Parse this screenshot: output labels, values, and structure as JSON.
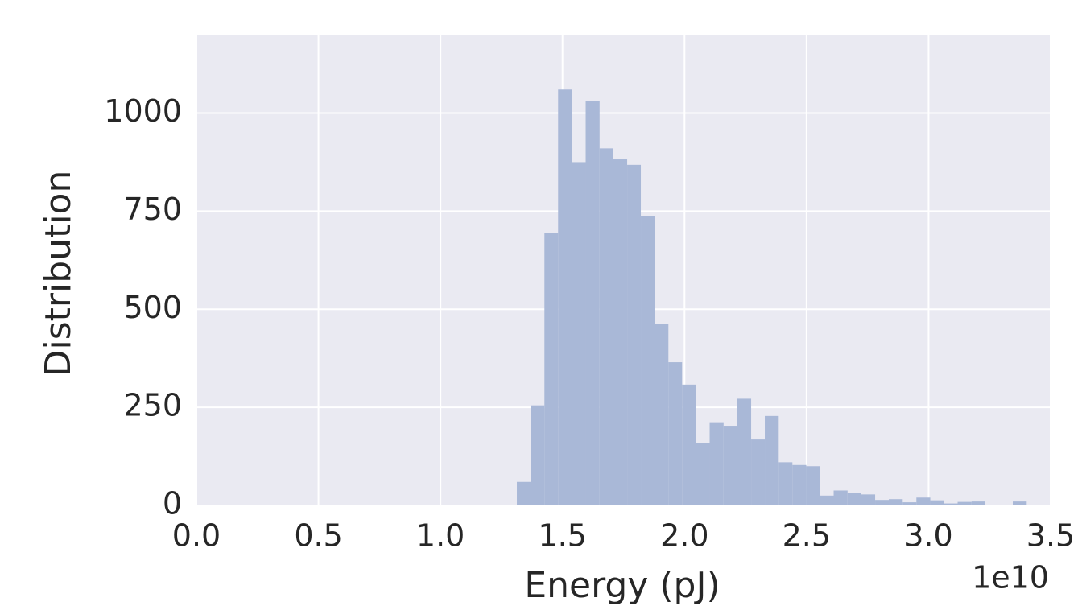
{
  "chart_data": {
    "type": "histogram",
    "xlabel": "Energy (pJ)",
    "ylabel": "Distribution",
    "x_offset_label": "1e10",
    "bins": [
      1.313,
      1.369,
      1.426,
      1.482,
      1.539,
      1.595,
      1.652,
      1.708,
      1.765,
      1.821,
      1.878,
      1.934,
      1.99,
      2.047,
      2.103,
      2.16,
      2.216,
      2.273,
      2.329,
      2.386,
      2.442,
      2.499,
      2.555,
      2.611,
      2.668,
      2.724,
      2.781,
      2.837,
      2.894,
      2.95,
      3.007,
      3.063,
      3.119,
      3.176,
      3.232,
      3.289,
      3.345,
      3.402
    ],
    "values": [
      60,
      255,
      695,
      1060,
      875,
      1030,
      910,
      882,
      868,
      738,
      462,
      365,
      308,
      160,
      210,
      203,
      272,
      168,
      228,
      110,
      103,
      100,
      25,
      38,
      32,
      28,
      14,
      16,
      8,
      20,
      13,
      5,
      9,
      10,
      0,
      0,
      10
    ],
    "color": "#a9b8d7",
    "xlim": [
      0,
      3.5
    ],
    "xticks": [
      {
        "value": 0,
        "label": "0.0"
      },
      0.5,
      {
        "value": 1,
        "label": "1.0"
      },
      1.5,
      {
        "value": 2,
        "label": "2.0"
      },
      2.5,
      {
        "value": 3,
        "label": "3.0"
      },
      3.5
    ],
    "ylim": [
      0,
      1200
    ],
    "yticks": [
      0,
      250,
      500,
      750,
      1000
    ],
    "grid": true
  }
}
